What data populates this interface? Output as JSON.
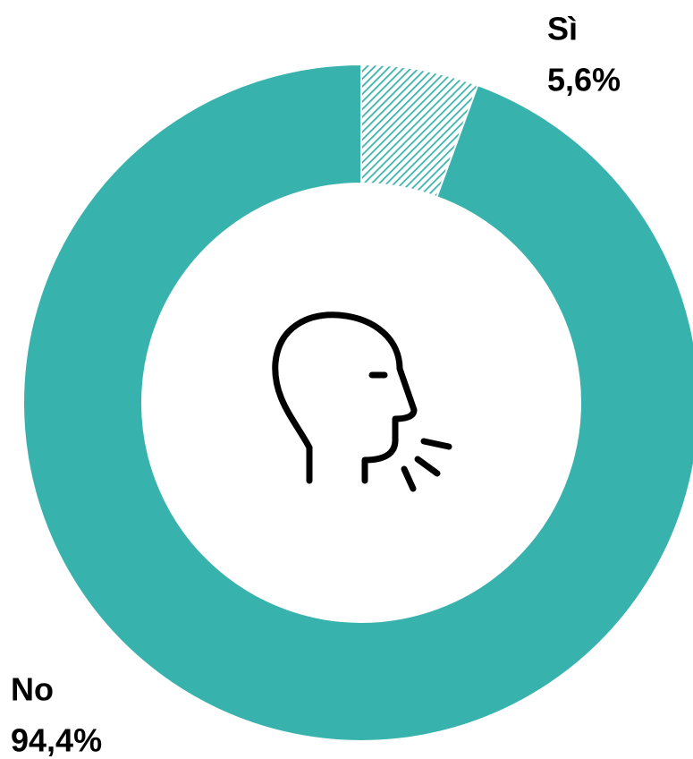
{
  "chart_data": {
    "type": "donut",
    "categories": [
      "Sì",
      "No"
    ],
    "values": [
      5.6,
      94.4
    ],
    "value_labels": [
      "5,6%",
      "94,4%"
    ],
    "colors": [
      "#38b2ac",
      "#38b2ac"
    ],
    "patterns": [
      "hatch",
      "solid"
    ]
  }
}
